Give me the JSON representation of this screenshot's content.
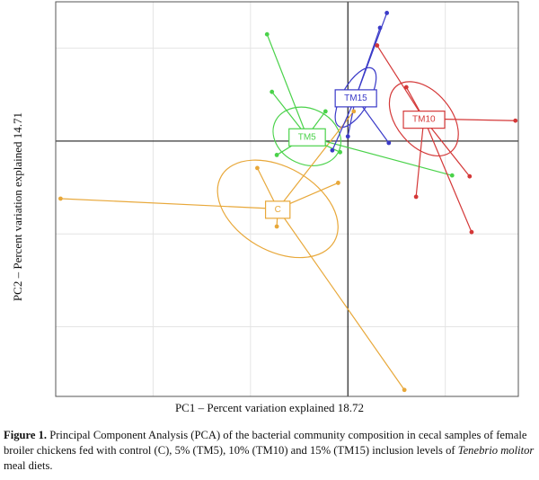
{
  "chart_data": {
    "type": "scatter",
    "title": "",
    "xlabel": "PC1 – Percent variation explained 18.72",
    "ylabel": "PC2 – Percent variation explained 14.71",
    "grid": true,
    "xlim": [
      -3.0,
      1.75
    ],
    "ylim": [
      -2.75,
      1.5
    ],
    "groups": [
      {
        "name": "C",
        "color": "#e8a83a",
        "centroid": [
          -0.72,
          -0.73
        ],
        "ellipse": {
          "rx": 0.67,
          "ry": 0.45,
          "angle_deg": 30
        },
        "points": [
          [
            -2.95,
            -0.62
          ],
          [
            -0.93,
            -0.29
          ],
          [
            -0.73,
            -0.92
          ],
          [
            -0.1,
            -0.45
          ],
          [
            0.06,
            0.32
          ],
          [
            0.58,
            -2.68
          ]
        ]
      },
      {
        "name": "TM5",
        "color": "#4ad24a",
        "centroid": [
          -0.42,
          0.05
        ],
        "ellipse": {
          "rx": 0.36,
          "ry": 0.3,
          "angle_deg": 25
        },
        "points": [
          [
            -0.83,
            1.15
          ],
          [
            -0.78,
            0.53
          ],
          [
            -0.73,
            -0.15
          ],
          [
            -0.23,
            0.32
          ],
          [
            -0.08,
            -0.12
          ],
          [
            1.07,
            -0.37
          ]
        ]
      },
      {
        "name": "TM15",
        "color": "#3a3ac8",
        "centroid": [
          0.08,
          0.47
        ],
        "ellipse": {
          "rx": 0.14,
          "ry": 0.36,
          "angle_deg": 30
        },
        "points": [
          [
            -0.16,
            -0.1
          ],
          [
            0.4,
            1.38
          ],
          [
            0.33,
            1.22
          ],
          [
            0.42,
            -0.02
          ],
          [
            0.0,
            0.05
          ]
        ]
      },
      {
        "name": "TM10",
        "color": "#d43838",
        "centroid": [
          0.78,
          0.24
        ],
        "ellipse": {
          "rx": 0.28,
          "ry": 0.46,
          "angle_deg": -40
        },
        "points": [
          [
            0.3,
            1.03
          ],
          [
            1.72,
            0.22
          ],
          [
            1.25,
            -0.38
          ],
          [
            1.27,
            -0.98
          ],
          [
            0.7,
            -0.6
          ],
          [
            0.6,
            0.58
          ]
        ]
      }
    ]
  },
  "caption": {
    "label": "Figure 1.",
    "text_before": "Principal Component Analysis (PCA) of the bacterial community composition in cecal samples of female broiler chickens fed with control (C), 5% (TM5), 10% (TM10) and 15% (TM15) inclusion levels of",
    "species": "Tenebrio molitor",
    "text_after": "meal diets."
  }
}
